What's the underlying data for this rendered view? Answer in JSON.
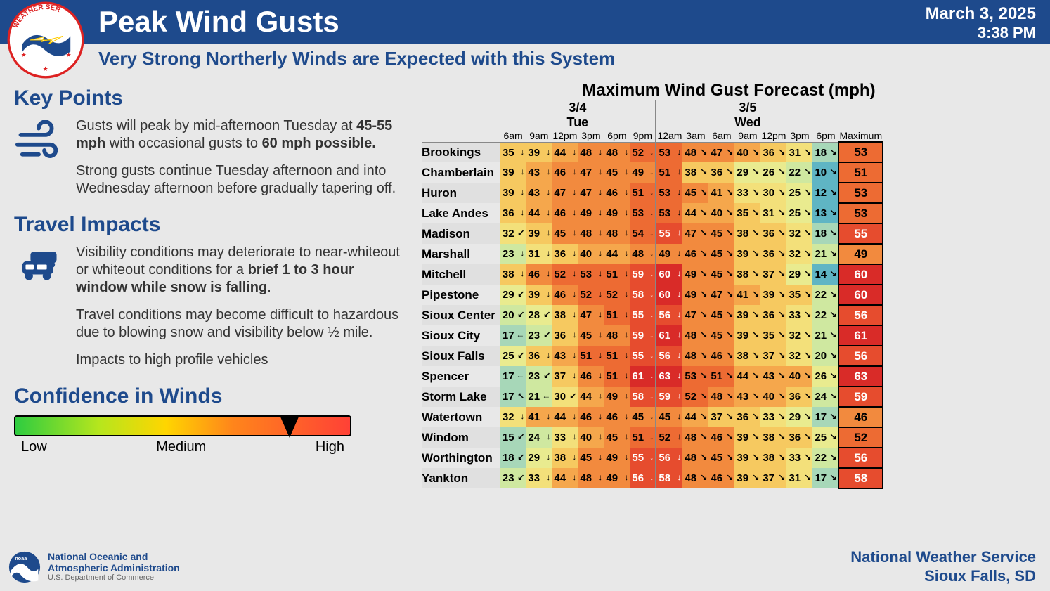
{
  "header": {
    "title": "Peak Wind Gusts",
    "date": "March 3, 2025",
    "time": "3:38 PM",
    "subtitle": "Very Strong Northerly Winds are Expected with this System"
  },
  "keyPoints": {
    "title": "Key Points",
    "html": "Gusts will peak by mid-afternoon Tuesday at <b>45-55 mph</b> with occasional gusts to <b>60 mph possible.</b>",
    "p2": "Strong gusts continue Tuesday afternoon and into Wednesday afternoon before gradually tapering off."
  },
  "travel": {
    "title": "Travel Impacts",
    "html": "Visibility conditions may deteriorate to near-whiteout or whiteout conditions for a <b>brief 1 to 3 hour window while snow is falling</b>.",
    "p2": "Travel conditions may become difficult to hazardous due to blowing snow and visibility below ½ mile.",
    "p3": "Impacts to high profile vehicles"
  },
  "confidence": {
    "title": "Confidence in Winds",
    "labels": [
      "Low",
      "Medium",
      "High"
    ],
    "marker_position_pct": 82
  },
  "footer": {
    "noaa1": "National Oceanic and",
    "noaa2": "Atmospheric Administration",
    "noaa3": "U.S. Department of Commerce",
    "nws1": "National Weather Service",
    "nws2": "Sioux Falls, SD"
  },
  "chart": {
    "title": "Maximum Wind Gust Forecast (mph)",
    "max_label": "Maximum",
    "days": [
      {
        "date": "3/4",
        "dow": "Tue",
        "times": [
          "6am",
          "9am",
          "12pm",
          "3pm",
          "6pm",
          "9pm"
        ]
      },
      {
        "date": "3/5",
        "dow": "Wed",
        "times": [
          "12am",
          "3am",
          "6am",
          "9am",
          "12pm",
          "3pm",
          "6pm"
        ]
      }
    ],
    "colorScale": {
      "breaks": [
        10,
        15,
        20,
        25,
        30,
        35,
        40,
        45,
        50,
        55,
        60,
        65
      ],
      "colors": [
        "#5fb5c4",
        "#a7d7b8",
        "#cfe8a0",
        "#e9eb8f",
        "#f3e07a",
        "#f6c960",
        "#f5a74c",
        "#f28a3e",
        "#ed6b33",
        "#e64c2e",
        "#d92b28",
        "#c40d20"
      ]
    },
    "rows": [
      {
        "city": "Brookings",
        "vals": [
          35,
          39,
          44,
          48,
          48,
          52,
          53,
          48,
          47,
          40,
          36,
          31,
          18
        ],
        "max": 53
      },
      {
        "city": "Chamberlain",
        "vals": [
          39,
          43,
          46,
          47,
          45,
          49,
          51,
          38,
          36,
          29,
          26,
          22,
          10
        ],
        "max": 51
      },
      {
        "city": "Huron",
        "vals": [
          39,
          43,
          47,
          47,
          46,
          51,
          53,
          45,
          41,
          33,
          30,
          25,
          12
        ],
        "max": 53
      },
      {
        "city": "Lake Andes",
        "vals": [
          36,
          44,
          46,
          49,
          49,
          53,
          53,
          44,
          40,
          35,
          31,
          25,
          13
        ],
        "max": 53
      },
      {
        "city": "Madison",
        "vals": [
          32,
          39,
          45,
          48,
          48,
          54,
          55,
          47,
          45,
          38,
          36,
          32,
          18
        ],
        "max": 55
      },
      {
        "city": "Marshall",
        "vals": [
          23,
          31,
          36,
          40,
          44,
          48,
          49,
          46,
          45,
          39,
          36,
          32,
          21
        ],
        "max": 49
      },
      {
        "city": "Mitchell",
        "vals": [
          38,
          46,
          52,
          53,
          51,
          59,
          60,
          49,
          45,
          38,
          37,
          29,
          14
        ],
        "max": 60
      },
      {
        "city": "Pipestone",
        "vals": [
          29,
          39,
          46,
          52,
          52,
          58,
          60,
          49,
          47,
          41,
          39,
          35,
          22
        ],
        "max": 60
      },
      {
        "city": "Sioux Center",
        "vals": [
          20,
          28,
          38,
          47,
          51,
          55,
          56,
          47,
          45,
          39,
          36,
          33,
          22
        ],
        "max": 56
      },
      {
        "city": "Sioux City",
        "vals": [
          17,
          23,
          36,
          45,
          48,
          59,
          61,
          48,
          45,
          39,
          35,
          32,
          21
        ],
        "max": 61
      },
      {
        "city": "Sioux Falls",
        "vals": [
          25,
          36,
          43,
          51,
          51,
          55,
          56,
          48,
          46,
          38,
          37,
          32,
          20
        ],
        "max": 56
      },
      {
        "city": "Spencer",
        "vals": [
          17,
          23,
          37,
          46,
          51,
          61,
          63,
          53,
          51,
          44,
          43,
          40,
          26
        ],
        "max": 63
      },
      {
        "city": "Storm Lake",
        "vals": [
          17,
          21,
          30,
          44,
          49,
          58,
          59,
          52,
          48,
          43,
          40,
          36,
          24
        ],
        "max": 59
      },
      {
        "city": "Watertown",
        "vals": [
          32,
          41,
          44,
          46,
          46,
          45,
          45,
          44,
          37,
          36,
          33,
          29,
          17
        ],
        "max": 46
      },
      {
        "city": "Windom",
        "vals": [
          15,
          24,
          33,
          40,
          45,
          51,
          52,
          48,
          46,
          39,
          38,
          36,
          25
        ],
        "max": 52
      },
      {
        "city": "Worthington",
        "vals": [
          18,
          29,
          38,
          45,
          49,
          55,
          56,
          48,
          45,
          39,
          38,
          33,
          22
        ],
        "max": 56
      },
      {
        "city": "Yankton",
        "vals": [
          23,
          33,
          44,
          48,
          49,
          56,
          58,
          48,
          46,
          39,
          37,
          31,
          17
        ],
        "max": 58
      }
    ],
    "arrows": {
      "default": "↓",
      "special": {
        "Sioux Center": {
          "0": "↙",
          "1": "↙"
        },
        "Sioux City": {
          "0": "←",
          "1": "↙"
        },
        "Spencer": {
          "0": "←",
          "1": "↙"
        },
        "Storm Lake": {
          "0": "↖",
          "1": "←",
          "2": "↙"
        },
        "Windom": {
          "0": "↙"
        },
        "Worthington": {
          "0": "↙"
        },
        "Yankton": {
          "0": "↙"
        },
        "Madison": {
          "0": "↙"
        },
        "Sioux Falls": {
          "0": "↙"
        },
        "Pipestone": {
          "0": "↙"
        }
      },
      "lateCols": "↘"
    }
  }
}
